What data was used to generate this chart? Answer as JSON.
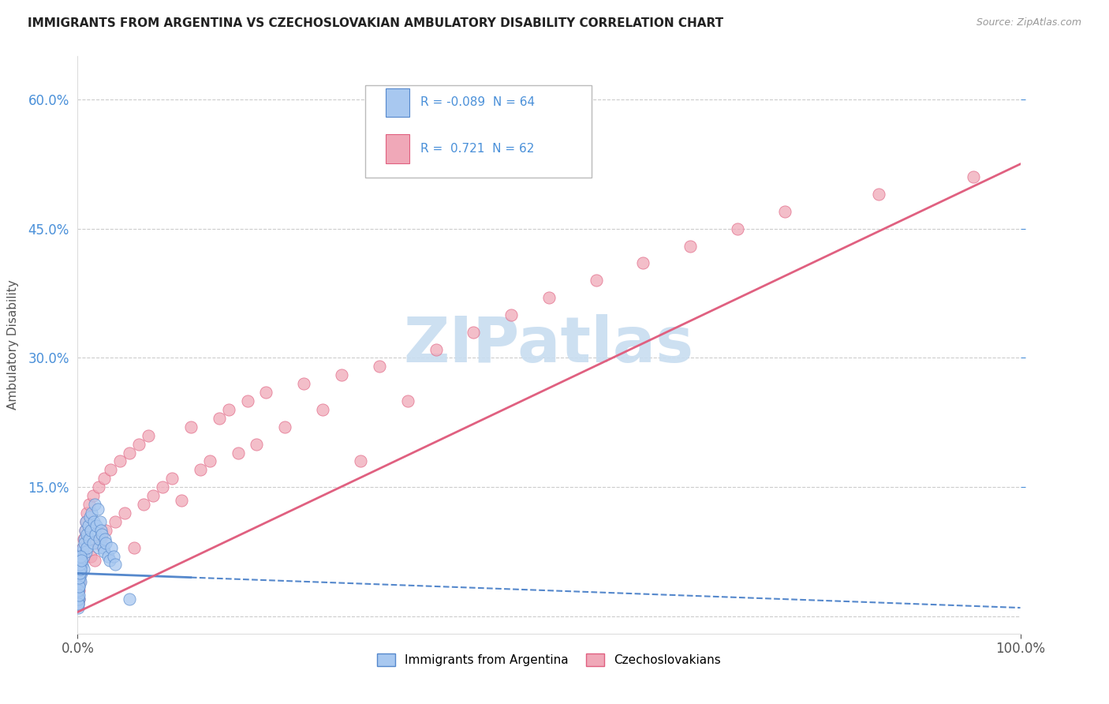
{
  "title": "IMMIGRANTS FROM ARGENTINA VS CZECHOSLOVAKIAN AMBULATORY DISABILITY CORRELATION CHART",
  "source": "Source: ZipAtlas.com",
  "ylabel": "Ambulatory Disability",
  "ytick_vals": [
    15.0,
    30.0,
    45.0,
    60.0
  ],
  "xlim": [
    0.0,
    100.0
  ],
  "ylim": [
    -2.0,
    65.0
  ],
  "legend_r1": "-0.089",
  "legend_n1": "64",
  "legend_r2": "0.721",
  "legend_n2": "62",
  "color_argentina": "#a8c8f0",
  "color_czechoslovakia": "#f0a8b8",
  "line_color_argentina": "#5588cc",
  "line_color_czechoslovakia": "#e06080",
  "watermark_text": "ZIPatlas",
  "watermark_color": "#c8ddf0",
  "argentina_x": [
    0.05,
    0.08,
    0.1,
    0.12,
    0.15,
    0.18,
    0.2,
    0.22,
    0.25,
    0.28,
    0.3,
    0.35,
    0.4,
    0.45,
    0.5,
    0.55,
    0.6,
    0.65,
    0.7,
    0.75,
    0.8,
    0.85,
    0.9,
    0.95,
    1.0,
    1.1,
    1.2,
    1.3,
    1.4,
    1.5,
    1.6,
    1.7,
    1.8,
    1.9,
    2.0,
    2.1,
    2.2,
    2.3,
    2.4,
    2.5,
    2.6,
    2.7,
    2.8,
    2.9,
    3.0,
    3.2,
    3.4,
    3.6,
    3.8,
    4.0,
    0.03,
    0.04,
    0.06,
    0.07,
    0.09,
    0.11,
    0.13,
    0.16,
    0.19,
    0.23,
    0.27,
    0.32,
    0.38,
    5.5
  ],
  "argentina_y": [
    2.5,
    3.0,
    2.0,
    4.0,
    3.5,
    5.0,
    4.5,
    6.0,
    5.5,
    7.0,
    4.0,
    6.5,
    5.0,
    7.5,
    6.0,
    8.0,
    7.0,
    5.5,
    9.0,
    8.5,
    10.0,
    7.5,
    11.0,
    9.5,
    8.0,
    10.5,
    9.0,
    11.5,
    10.0,
    12.0,
    8.5,
    11.0,
    13.0,
    9.5,
    10.5,
    12.5,
    8.0,
    9.0,
    11.0,
    10.0,
    9.5,
    8.0,
    7.5,
    9.0,
    8.5,
    7.0,
    6.5,
    8.0,
    7.0,
    6.0,
    1.0,
    1.5,
    2.0,
    1.5,
    3.0,
    2.5,
    3.5,
    4.5,
    5.0,
    6.0,
    5.5,
    7.0,
    6.5,
    2.0
  ],
  "czechoslovakia_x": [
    0.05,
    0.1,
    0.15,
    0.2,
    0.28,
    0.35,
    0.45,
    0.55,
    0.65,
    0.8,
    0.9,
    1.0,
    1.2,
    1.4,
    1.6,
    1.8,
    2.0,
    2.2,
    2.5,
    2.8,
    3.0,
    3.5,
    4.0,
    4.5,
    5.0,
    5.5,
    6.0,
    6.5,
    7.0,
    7.5,
    8.0,
    9.0,
    10.0,
    11.0,
    12.0,
    13.0,
    14.0,
    15.0,
    16.0,
    17.0,
    18.0,
    19.0,
    20.0,
    22.0,
    24.0,
    26.0,
    28.0,
    30.0,
    32.0,
    35.0,
    38.0,
    42.0,
    46.0,
    50.0,
    55.0,
    60.0,
    65.0,
    70.0,
    75.0,
    85.0,
    95.0,
    0.25
  ],
  "czechoslovakia_y": [
    1.5,
    2.0,
    3.0,
    4.0,
    5.0,
    6.0,
    7.0,
    8.0,
    9.0,
    10.0,
    11.0,
    12.0,
    13.0,
    7.0,
    14.0,
    6.5,
    8.5,
    15.0,
    9.0,
    16.0,
    10.0,
    17.0,
    11.0,
    18.0,
    12.0,
    19.0,
    8.0,
    20.0,
    13.0,
    21.0,
    14.0,
    15.0,
    16.0,
    13.5,
    22.0,
    17.0,
    18.0,
    23.0,
    24.0,
    19.0,
    25.0,
    20.0,
    26.0,
    22.0,
    27.0,
    24.0,
    28.0,
    18.0,
    29.0,
    25.0,
    31.0,
    33.0,
    35.0,
    37.0,
    39.0,
    41.0,
    43.0,
    45.0,
    47.0,
    49.0,
    51.0,
    5.0
  ]
}
